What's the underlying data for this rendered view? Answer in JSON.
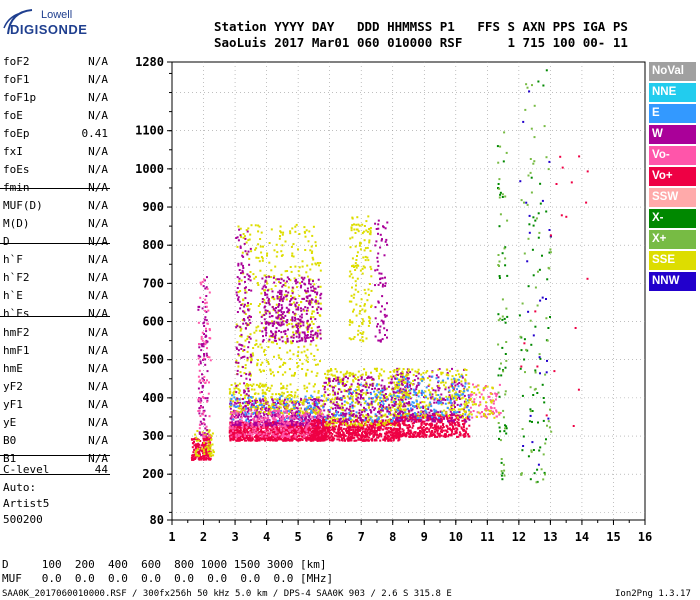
{
  "logo": {
    "line1": "Lowell",
    "line2": "DIGISONDE"
  },
  "header": {
    "line1": "Station YYYY DAY   DDD HHMMSS P1   FFS S AXN PPS IGA PS",
    "line2": "SaoLuis 2017 Mar01 060 010000 RSF      1 715 100 00- 11"
  },
  "params": [
    {
      "name": "foF2",
      "value": "N/A"
    },
    {
      "name": "foF1",
      "value": "N/A"
    },
    {
      "name": "foF1p",
      "value": "N/A"
    },
    {
      "name": "foE",
      "value": "N/A"
    },
    {
      "name": "foEp",
      "value": "0.41"
    },
    {
      "name": "fxI",
      "value": "N/A"
    },
    {
      "name": "foEs",
      "value": "N/A"
    },
    {
      "name": "fmin",
      "value": "N/A"
    },
    {
      "name": "MUF(D)",
      "value": "N/A"
    },
    {
      "name": "M(D)",
      "value": "N/A"
    },
    {
      "name": "D",
      "value": "N/A"
    },
    {
      "name": "h`F",
      "value": "N/A"
    },
    {
      "name": "h`F2",
      "value": "N/A"
    },
    {
      "name": "h`E",
      "value": "N/A"
    },
    {
      "name": "h`Es",
      "value": "N/A"
    },
    {
      "name": "hmF2",
      "value": "N/A"
    },
    {
      "name": "hmF1",
      "value": "N/A"
    },
    {
      "name": "hmE",
      "value": "N/A"
    },
    {
      "name": "yF2",
      "value": "N/A"
    },
    {
      "name": "yF1",
      "value": "N/A"
    },
    {
      "name": "yE",
      "value": "N/A"
    },
    {
      "name": "B0",
      "value": "N/A"
    },
    {
      "name": "B1",
      "value": "N/A"
    },
    {
      "name": "C-level",
      "value": "44"
    }
  ],
  "autoscaling": {
    "line1": "Auto:",
    "line2": "Artist5",
    "line3": "500200"
  },
  "legend": [
    {
      "label": "NoVal",
      "color": "#a0a0a0"
    },
    {
      "label": "NNE",
      "color": "#22ccee"
    },
    {
      "label": "E",
      "color": "#3399ff"
    },
    {
      "label": "W",
      "color": "#aa0099"
    },
    {
      "label": "Vo-",
      "color": "#ff55aa"
    },
    {
      "label": "Vo+",
      "color": "#ee0044"
    },
    {
      "label": "SSW",
      "color": "#ffaaaa"
    },
    {
      "label": "X-",
      "color": "#008800"
    },
    {
      "label": "X+",
      "color": "#77bb44"
    },
    {
      "label": "SSE",
      "color": "#dddd00"
    },
    {
      "label": "NNW",
      "color": "#2200cc"
    }
  ],
  "footer": {
    "line1": "D     100  200  400  600  800 1000 1500 3000 [km]",
    "line2": "MUF   0.0  0.0  0.0  0.0  0.0  0.0  0.0  0.0 [MHz]",
    "line3": "SAA0K_2017060010000.RSF / 300fx256h 50 kHz 5.0 km / DPS-4 SAA0K 903 / 2.6 S 315.8 E",
    "line4": "Ion2Png 1.3.17"
  },
  "chart_data": {
    "type": "scatter",
    "title": "",
    "xlabel": "",
    "ylabel": "",
    "xlim": [
      1,
      16
    ],
    "ylim": [
      80,
      1280
    ],
    "x_ticks": [
      1,
      2,
      3,
      4,
      5,
      6,
      7,
      8,
      9,
      10,
      11,
      12,
      13,
      14,
      15,
      16
    ],
    "y_ticks": [
      80,
      200,
      300,
      400,
      500,
      600,
      700,
      800,
      900,
      1000,
      1100,
      1280
    ],
    "grid": true,
    "clusters": [
      {
        "x": [
          1.6,
          2.2
        ],
        "y": [
          240,
          300
        ],
        "color": "#ee0044",
        "count": 180
      },
      {
        "x": [
          1.7,
          2.3
        ],
        "y": [
          250,
          320
        ],
        "color": "#dddd00",
        "count": 60
      },
      {
        "x": [
          1.8,
          2.1
        ],
        "y": [
          300,
          720
        ],
        "color": "#aa0099",
        "count": 90
      },
      {
        "x": [
          1.8,
          2.2
        ],
        "y": [
          300,
          720
        ],
        "color": "#ff55aa",
        "count": 70
      },
      {
        "x": [
          2.8,
          5.8
        ],
        "y": [
          290,
          340
        ],
        "color": "#ee0044",
        "count": 900
      },
      {
        "x": [
          2.8,
          5.8
        ],
        "y": [
          330,
          400
        ],
        "color": "#aa0099",
        "count": 500
      },
      {
        "x": [
          2.8,
          5.8
        ],
        "y": [
          360,
          440
        ],
        "color": "#dddd00",
        "count": 260
      },
      {
        "x": [
          2.8,
          5.8
        ],
        "y": [
          340,
          410
        ],
        "color": "#3399ff",
        "count": 90
      },
      {
        "x": [
          2.8,
          5.8
        ],
        "y": [
          300,
          370
        ],
        "color": "#ff55aa",
        "count": 250
      },
      {
        "x": [
          3.0,
          5.7
        ],
        "y": [
          460,
          860
        ],
        "color": "#dddd00",
        "count": 420
      },
      {
        "x": [
          3.8,
          5.7
        ],
        "y": [
          550,
          720
        ],
        "color": "#aa0099",
        "count": 340
      },
      {
        "x": [
          3.0,
          3.5
        ],
        "y": [
          400,
          870
        ],
        "color": "#aa0099",
        "count": 120
      },
      {
        "x": [
          5.4,
          8.2
        ],
        "y": [
          290,
          345
        ],
        "color": "#ee0044",
        "count": 700
      },
      {
        "x": [
          5.8,
          8.5
        ],
        "y": [
          330,
          480
        ],
        "color": "#dddd00",
        "count": 420
      },
      {
        "x": [
          5.8,
          8.5
        ],
        "y": [
          340,
          460
        ],
        "color": "#aa0099",
        "count": 300
      },
      {
        "x": [
          5.8,
          8.5
        ],
        "y": [
          340,
          440
        ],
        "color": "#3399ff",
        "count": 80
      },
      {
        "x": [
          6.6,
          7.3
        ],
        "y": [
          550,
          880
        ],
        "color": "#dddd00",
        "count": 140
      },
      {
        "x": [
          7.4,
          7.8
        ],
        "y": [
          550,
          880
        ],
        "color": "#aa0099",
        "count": 70
      },
      {
        "x": [
          8.0,
          10.4
        ],
        "y": [
          300,
          360
        ],
        "color": "#ee0044",
        "count": 450
      },
      {
        "x": [
          8.0,
          10.4
        ],
        "y": [
          340,
          480
        ],
        "color": "#aa0099",
        "count": 260
      },
      {
        "x": [
          8.0,
          10.4
        ],
        "y": [
          350,
          480
        ],
        "color": "#dddd00",
        "count": 220
      },
      {
        "x": [
          8.0,
          10.4
        ],
        "y": [
          350,
          460
        ],
        "color": "#3399ff",
        "count": 110
      },
      {
        "x": [
          10.4,
          11.4
        ],
        "y": [
          350,
          440
        ],
        "color": "#ff55aa",
        "count": 70
      },
      {
        "x": [
          10.4,
          11.4
        ],
        "y": [
          350,
          440
        ],
        "color": "#dddd00",
        "count": 40
      },
      {
        "x": [
          11.3,
          11.6
        ],
        "y": [
          180,
          1100
        ],
        "color": "#008800",
        "count": 40
      },
      {
        "x": [
          11.3,
          11.6
        ],
        "y": [
          180,
          1100
        ],
        "color": "#77bb44",
        "count": 40
      },
      {
        "x": [
          12.0,
          13.0
        ],
        "y": [
          180,
          1270
        ],
        "color": "#008800",
        "count": 60
      },
      {
        "x": [
          12.0,
          13.0
        ],
        "y": [
          180,
          1270
        ],
        "color": "#77bb44",
        "count": 60
      },
      {
        "x": [
          12.0,
          13.0
        ],
        "y": [
          180,
          1270
        ],
        "color": "#2200cc",
        "count": 25
      },
      {
        "x": [
          12.0,
          14.2
        ],
        "y": [
          300,
          1100
        ],
        "color": "#ee0044",
        "count": 20
      }
    ]
  }
}
